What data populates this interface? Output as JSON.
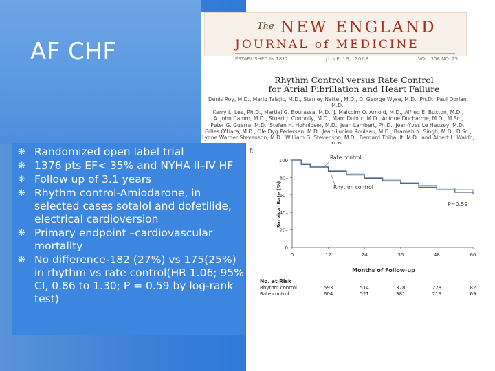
{
  "slide": {
    "title": "AF CHF",
    "bullets": [
      "Randomized open label trial",
      "1376 pts EF< 35% and NYHA II–IV HF",
      "Follow up of 3.1 years",
      "Rhythm control-Amiodarone, in selected cases sotalol and dofetilide, electrical cardioversion",
      "Primary endpoint –cardiovascular mortality",
      "No difference-182 (27%) vs 175(25%) in rhythm vs rate control(HR 1.06; 95% CI, 0.86 to 1.30; P = 0.59 by log-rank test)"
    ],
    "bullet_glyph": "❋"
  },
  "journal": {
    "the": "The",
    "name_line1": "NEW ENGLAND",
    "name_line2": "JOURNAL of MEDICINE",
    "established": "ESTABLISHED IN 1812",
    "date": "JUNE 19, 2008",
    "volume": "VOL. 358 NO. 25"
  },
  "article": {
    "title_line1": "Rhythm Control versus Rate Control",
    "title_line2": "for Atrial Fibrillation and Heart Failure",
    "authors": [
      "Denis Roy, M.D., Mario Talajic, M.D., Stanley Nattel, M.D., D. George Wyse, M.D., Ph.D., Paul Dorian, M.D.,",
      "Kerry L. Lee, Ph.D., Martial G. Bourassa, M.D., J. Malcolm O. Arnold, M.D., Alfred E. Buxton, M.D.,",
      "A. John Camm, M.D., Stuart J. Connolly, M.D., Marc Dubuc, M.D., Anique Ducharme, M.D., M.Sc.,",
      "Peter G. Guerra, M.D., Stefan H. Hohnloser, M.D., Jean Lambert, Ph.D., Jean-Yves Le Heuzey, M.D.,",
      "Gilles O'Hara, M.D., Ole Dyg Pedersen, M.D., Jean-Lucien Rouleau, M.D., Bramah N. Singh, M.D., D.Sc.,",
      "Lynne Warner Stevenson, M.D., William G. Stevenson, M.D., Bernard Thibault, M.D., and Albert L. Waldo, M.D.,",
      "for the Atrial Fibrillation and Congestive Heart Failure Investigators*"
    ]
  },
  "chart_data": {
    "type": "line",
    "ylabel": "Survival Rate (%)",
    "xlabel": "Months of Follow-up",
    "xlim": [
      0,
      60
    ],
    "ylim": [
      0,
      100
    ],
    "x_ticks": [
      0,
      12,
      24,
      36,
      48,
      60
    ],
    "y_ticks": [
      0,
      20,
      40,
      60,
      80,
      100
    ],
    "y_tick_labels": [
      "0",
      "20–",
      "40–",
      "60–",
      "80–",
      "100"
    ],
    "series": [
      {
        "name": "Rate control",
        "color": "#8aa0b4",
        "x": [
          0,
          3,
          6,
          12,
          18,
          24,
          30,
          36,
          42,
          48,
          54,
          60
        ],
        "values": [
          100,
          96,
          93,
          88,
          84,
          80,
          77,
          74,
          71,
          68,
          66,
          63
        ]
      },
      {
        "name": "Rhythm control",
        "color": "#4a6a88",
        "x": [
          0,
          3,
          6,
          12,
          18,
          24,
          30,
          36,
          42,
          48,
          54,
          60
        ],
        "values": [
          100,
          95,
          92,
          87,
          83,
          79,
          76,
          73,
          69,
          66,
          63,
          61
        ]
      }
    ],
    "annotation": "P=0.59",
    "risk_table": {
      "header": "No. at Risk",
      "rows": [
        {
          "label": "Rhythm control",
          "values": [
            "593",
            "514",
            "378",
            "228",
            "82"
          ]
        },
        {
          "label": "Rate control",
          "values": [
            "604",
            "521",
            "381",
            "219",
            "69"
          ]
        }
      ],
      "x": [
        12,
        24,
        36,
        48,
        60
      ]
    }
  }
}
